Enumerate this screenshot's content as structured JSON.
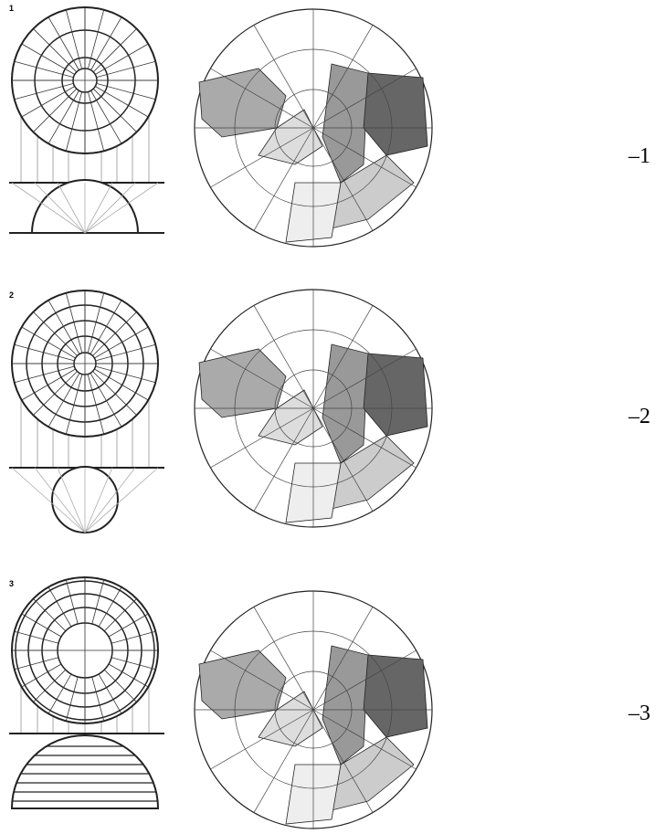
{
  "rows": [
    {
      "label": "1",
      "caption": "–1"
    },
    {
      "label": "2",
      "caption": "–2"
    },
    {
      "label": "3",
      "caption": "–3"
    }
  ]
}
